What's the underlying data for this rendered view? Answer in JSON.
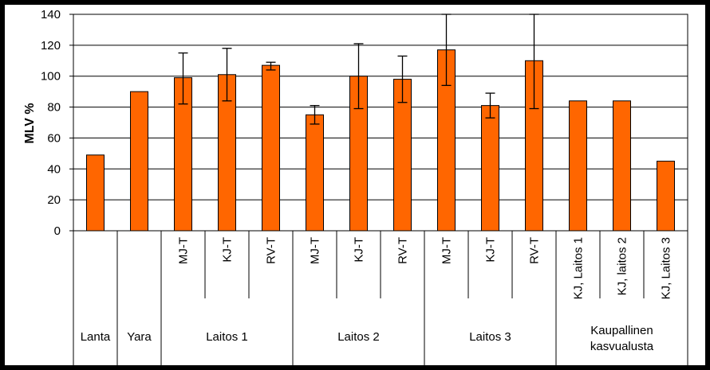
{
  "chart_data": {
    "type": "bar",
    "ylabel": "MLV %",
    "ylim": [
      0,
      140
    ],
    "yticks": [
      0,
      20,
      40,
      60,
      80,
      100,
      120,
      140
    ],
    "grid": true,
    "bar_color": "#ff6600",
    "categories": [
      {
        "group": "Lanta",
        "sub": ""
      },
      {
        "group": "Yara",
        "sub": ""
      },
      {
        "group": "Laitos 1",
        "sub": "MJ-T"
      },
      {
        "group": "Laitos 1",
        "sub": "KJ-T"
      },
      {
        "group": "Laitos 1",
        "sub": "RV-T"
      },
      {
        "group": "Laitos 2",
        "sub": "MJ-T"
      },
      {
        "group": "Laitos 2",
        "sub": "KJ-T"
      },
      {
        "group": "Laitos 2",
        "sub": "RV-T"
      },
      {
        "group": "Laitos 3",
        "sub": "MJ-T"
      },
      {
        "group": "Laitos 3",
        "sub": "KJ-T"
      },
      {
        "group": "Laitos 3",
        "sub": "RV-T"
      },
      {
        "group": "Kaupallinen kasvualusta",
        "sub": "KJ, Laitos 1"
      },
      {
        "group": "Kaupallinen kasvualusta",
        "sub": "KJ, laitos 2"
      },
      {
        "group": "Kaupallinen kasvualusta",
        "sub": "KJ, Laitos 3"
      }
    ],
    "groups": [
      {
        "label": "Lanta",
        "lines": [
          "Lanta"
        ],
        "start": 0,
        "end": 0
      },
      {
        "label": "Yara",
        "lines": [
          "Yara"
        ],
        "start": 1,
        "end": 1
      },
      {
        "label": "Laitos 1",
        "lines": [
          "Laitos 1"
        ],
        "start": 2,
        "end": 4
      },
      {
        "label": "Laitos 2",
        "lines": [
          "Laitos 2"
        ],
        "start": 5,
        "end": 7
      },
      {
        "label": "Laitos 3",
        "lines": [
          "Laitos 3"
        ],
        "start": 8,
        "end": 10
      },
      {
        "label": "Kaupallinen kasvualusta",
        "lines": [
          "Kaupallinen",
          "kasvualusta"
        ],
        "start": 11,
        "end": 13
      }
    ],
    "values": [
      49,
      90,
      99,
      101,
      107,
      75,
      100,
      98,
      117,
      81,
      110,
      84,
      84,
      45
    ],
    "errors": [
      null,
      null,
      [
        82,
        115
      ],
      [
        84,
        118
      ],
      [
        104,
        109
      ],
      [
        69,
        81
      ],
      [
        79,
        121
      ],
      [
        83,
        113
      ],
      [
        94,
        140
      ],
      [
        73,
        89
      ],
      [
        79,
        140
      ],
      null,
      null,
      null
    ]
  }
}
